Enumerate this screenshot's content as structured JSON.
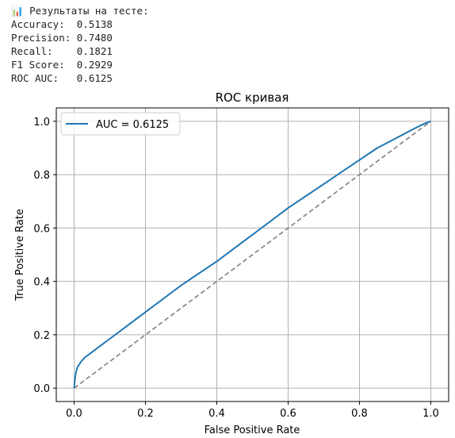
{
  "output": {
    "header_icon": "bar-chart-icon",
    "header_text": "📊 Результаты на тесте:",
    "metrics": [
      {
        "label": "Accuracy:",
        "value": "0.5138"
      },
      {
        "label": "Precision:",
        "value": "0.7480"
      },
      {
        "label": "Recall:",
        "value": "0.1821"
      },
      {
        "label": "F1 Score:",
        "value": "0.2929"
      },
      {
        "label": "ROC AUC:",
        "value": "0.6125"
      }
    ]
  },
  "chart_data": {
    "type": "line",
    "title": "ROC кривая",
    "xlabel": "False Positive Rate",
    "ylabel": "True Positive Rate",
    "xlim": [
      -0.05,
      1.05
    ],
    "ylim": [
      -0.05,
      1.05
    ],
    "xticks": [
      0.0,
      0.2,
      0.4,
      0.6,
      0.8,
      1.0
    ],
    "yticks": [
      0.0,
      0.2,
      0.4,
      0.6,
      0.8,
      1.0
    ],
    "xtick_labels": [
      "0.0",
      "0.2",
      "0.4",
      "0.6",
      "0.8",
      "1.0"
    ],
    "ytick_labels": [
      "0.0",
      "0.2",
      "0.4",
      "0.6",
      "0.8",
      "1.0"
    ],
    "grid": true,
    "legend_position": "upper-left",
    "series": [
      {
        "name": "AUC = 0.6125",
        "color": "#1f77b4",
        "style": "solid",
        "x": [
          0.0,
          0.002,
          0.005,
          0.01,
          0.02,
          0.03,
          0.05,
          0.07,
          0.1,
          0.13,
          0.16,
          0.2,
          0.25,
          0.3,
          0.35,
          0.4,
          0.45,
          0.5,
          0.55,
          0.6,
          0.65,
          0.7,
          0.75,
          0.8,
          0.85,
          0.9,
          0.95,
          0.98,
          1.0
        ],
        "y": [
          0.0,
          0.03,
          0.06,
          0.08,
          0.1,
          0.115,
          0.135,
          0.155,
          0.185,
          0.215,
          0.245,
          0.285,
          0.335,
          0.385,
          0.43,
          0.475,
          0.525,
          0.575,
          0.625,
          0.675,
          0.72,
          0.765,
          0.81,
          0.855,
          0.9,
          0.935,
          0.97,
          0.99,
          1.0
        ]
      },
      {
        "name": "",
        "color": "#808080",
        "style": "dashed",
        "x": [
          0.0,
          1.0
        ],
        "y": [
          0.0,
          1.0
        ]
      }
    ]
  }
}
